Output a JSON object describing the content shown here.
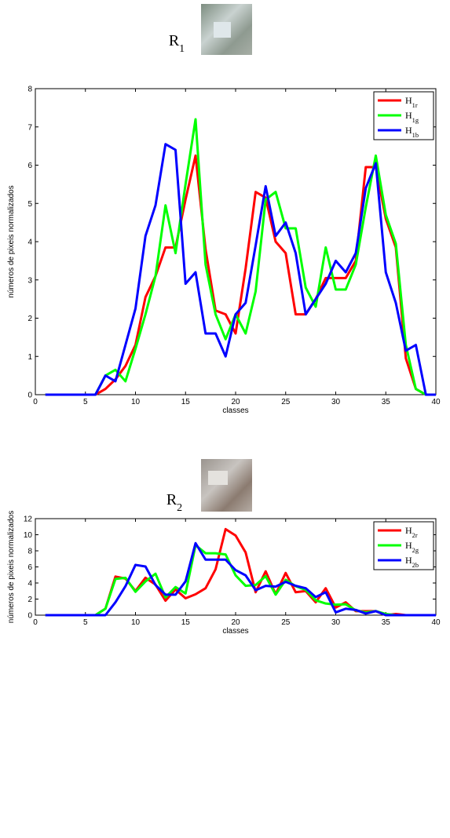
{
  "chart_data": [
    {
      "type": "line",
      "label": "R1",
      "xlabel": "classes",
      "ylabel": "números de pixeis normalizados",
      "xlim": [
        0,
        40
      ],
      "xticks": [
        0,
        5,
        10,
        15,
        20,
        25,
        30,
        35,
        40
      ],
      "ylim": [
        0,
        8
      ],
      "yticks": [
        0,
        1,
        2,
        3,
        4,
        5,
        6,
        7,
        8
      ],
      "legend": "upper right",
      "x": [
        1,
        2,
        3,
        4,
        5,
        6,
        7,
        8,
        9,
        10,
        11,
        12,
        13,
        14,
        15,
        16,
        17,
        18,
        19,
        20,
        21,
        22,
        23,
        24,
        25,
        26,
        27,
        28,
        29,
        30,
        31,
        32,
        33,
        34,
        35,
        36,
        37,
        38,
        39,
        40
      ],
      "series": [
        {
          "name": "H1r",
          "color": "#ff0000",
          "values": [
            0,
            0,
            0,
            0,
            0,
            0,
            0.15,
            0.4,
            0.75,
            1.3,
            2.55,
            3.1,
            3.85,
            3.85,
            5.1,
            6.25,
            3.8,
            2.2,
            2.1,
            1.6,
            3.3,
            5.3,
            5.15,
            4.0,
            3.7,
            2.1,
            2.1,
            2.5,
            3.05,
            3.05,
            3.05,
            3.5,
            5.95,
            5.95,
            4.6,
            3.85,
            0.95,
            0.15,
            0,
            0
          ]
        },
        {
          "name": "H1g",
          "color": "#00ff00",
          "values": [
            0,
            0,
            0,
            0,
            0,
            0,
            0.5,
            0.65,
            0.35,
            1.2,
            2.1,
            3.1,
            4.95,
            3.7,
            5.5,
            7.2,
            3.4,
            2.1,
            1.45,
            2.1,
            1.6,
            2.7,
            5.1,
            5.3,
            4.35,
            4.35,
            2.8,
            2.3,
            3.85,
            2.75,
            2.75,
            3.4,
            4.9,
            6.25,
            4.7,
            3.95,
            1.3,
            0.15,
            0,
            0
          ]
        },
        {
          "name": "H1b",
          "color": "#0000ff",
          "values": [
            0,
            0,
            0,
            0,
            0,
            0,
            0.5,
            0.35,
            1.3,
            2.25,
            4.15,
            4.95,
            6.55,
            6.4,
            2.9,
            3.2,
            1.6,
            1.6,
            1.0,
            2.1,
            2.4,
            3.9,
            5.45,
            4.15,
            4.5,
            3.7,
            2.1,
            2.5,
            2.9,
            3.5,
            3.2,
            3.7,
            5.4,
            6.05,
            3.2,
            2.4,
            1.15,
            1.3,
            0,
            0
          ]
        }
      ]
    },
    {
      "type": "line",
      "label": "R2",
      "xlabel": "classes",
      "ylabel": "números de pixeis normalizados",
      "xlim": [
        0,
        40
      ],
      "xticks": [
        0,
        5,
        10,
        15,
        20,
        25,
        30,
        35,
        40
      ],
      "ylim": [
        0,
        12
      ],
      "yticks": [
        0,
        2,
        4,
        6,
        8,
        10,
        12
      ],
      "legend": "upper right",
      "x": [
        1,
        2,
        3,
        4,
        5,
        6,
        7,
        8,
        9,
        10,
        11,
        12,
        13,
        14,
        15,
        16,
        17,
        18,
        19,
        20,
        21,
        22,
        23,
        24,
        25,
        26,
        27,
        28,
        29,
        30,
        31,
        32,
        33,
        34,
        35,
        36,
        37,
        38,
        39,
        40
      ],
      "series": [
        {
          "name": "H2r",
          "color": "#ff0000",
          "values": [
            0,
            0,
            0,
            0,
            0,
            0,
            0.8,
            4.8,
            4.55,
            3.0,
            4.65,
            3.8,
            1.8,
            3.2,
            2.1,
            2.6,
            3.35,
            5.7,
            10.7,
            9.9,
            7.8,
            2.85,
            5.45,
            2.6,
            5.25,
            2.85,
            3.0,
            1.6,
            3.35,
            0.95,
            1.6,
            0.5,
            0.5,
            0.5,
            0,
            0.15,
            0,
            0,
            0,
            0
          ]
        },
        {
          "name": "H2g",
          "color": "#00ff00",
          "values": [
            0,
            0,
            0,
            0,
            0,
            0,
            0.8,
            4.5,
            4.65,
            2.9,
            4.2,
            5.15,
            2.2,
            3.5,
            2.7,
            8.7,
            7.7,
            7.7,
            7.55,
            4.95,
            3.65,
            3.75,
            4.85,
            2.55,
            4.4,
            3.6,
            3.15,
            1.85,
            1.45,
            1.3,
            1.35,
            0.6,
            0.35,
            0.5,
            0.15,
            0,
            0,
            0,
            0,
            0
          ]
        },
        {
          "name": "H2b",
          "color": "#0000ff",
          "values": [
            0,
            0,
            0,
            0,
            0,
            0,
            0,
            1.6,
            3.6,
            6.25,
            6.05,
            3.75,
            2.55,
            2.55,
            4.2,
            8.95,
            6.9,
            6.9,
            6.9,
            5.6,
            4.95,
            3.1,
            3.65,
            3.55,
            4.15,
            3.65,
            3.35,
            2.25,
            2.85,
            0.35,
            0.8,
            0.65,
            0.2,
            0.5,
            0,
            0,
            0,
            0,
            0,
            0
          ]
        }
      ]
    }
  ]
}
